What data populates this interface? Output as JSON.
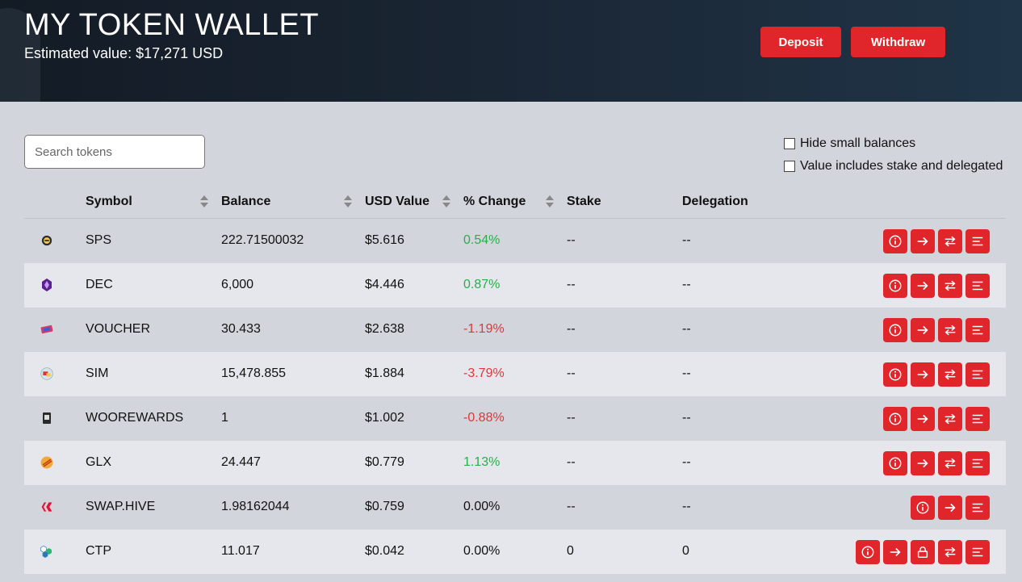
{
  "header": {
    "title": "MY TOKEN WALLET",
    "estimated_value": "Estimated value: $17,271 USD",
    "deposit_label": "Deposit",
    "withdraw_label": "Withdraw"
  },
  "search": {
    "placeholder": "Search tokens",
    "value": ""
  },
  "filters": {
    "hide_small_balances": "Hide small balances",
    "value_includes_stake": "Value includes stake and delegated"
  },
  "columns": {
    "symbol": "Symbol",
    "balance": "Balance",
    "usd_value": "USD Value",
    "pct_change": "% Change",
    "stake": "Stake",
    "delegation": "Delegation"
  },
  "tokens": [
    {
      "symbol": "SPS",
      "balance": "222.71500032",
      "usd": "$5.616",
      "change": "0.54%",
      "trend": "up",
      "stake": "--",
      "delegation": "--",
      "icon": "sps-token-icon",
      "actions": [
        "info",
        "transfer",
        "swap",
        "history"
      ]
    },
    {
      "symbol": "DEC",
      "balance": "6,000",
      "usd": "$4.446",
      "change": "0.87%",
      "trend": "up",
      "stake": "--",
      "delegation": "--",
      "icon": "dec-token-icon",
      "actions": [
        "info",
        "transfer",
        "swap",
        "history"
      ]
    },
    {
      "symbol": "VOUCHER",
      "balance": "30.433",
      "usd": "$2.638",
      "change": "-1.19%",
      "trend": "down",
      "stake": "--",
      "delegation": "--",
      "icon": "voucher-token-icon",
      "actions": [
        "info",
        "transfer",
        "swap",
        "history"
      ]
    },
    {
      "symbol": "SIM",
      "balance": "15,478.855",
      "usd": "$1.884",
      "change": "-3.79%",
      "trend": "down",
      "stake": "--",
      "delegation": "--",
      "icon": "sim-token-icon",
      "actions": [
        "info",
        "transfer",
        "swap",
        "history"
      ]
    },
    {
      "symbol": "WOOREWARDS",
      "balance": "1",
      "usd": "$1.002",
      "change": "-0.88%",
      "trend": "down",
      "stake": "--",
      "delegation": "--",
      "icon": "woorewards-token-icon",
      "actions": [
        "info",
        "transfer",
        "swap",
        "history"
      ]
    },
    {
      "symbol": "GLX",
      "balance": "24.447",
      "usd": "$0.779",
      "change": "1.13%",
      "trend": "up",
      "stake": "--",
      "delegation": "--",
      "icon": "glx-token-icon",
      "actions": [
        "info",
        "transfer",
        "swap",
        "history"
      ]
    },
    {
      "symbol": "SWAP.HIVE",
      "balance": "1.98162044",
      "usd": "$0.759",
      "change": "0.00%",
      "trend": "flat",
      "stake": "--",
      "delegation": "--",
      "icon": "hive-token-icon",
      "actions": [
        "info",
        "transfer",
        "history"
      ]
    },
    {
      "symbol": "CTP",
      "balance": "11.017",
      "usd": "$0.042",
      "change": "0.00%",
      "trend": "flat",
      "stake": "0",
      "delegation": "0",
      "icon": "ctp-token-icon",
      "actions": [
        "info",
        "transfer",
        "stake",
        "swap",
        "history"
      ]
    }
  ],
  "colors": {
    "accent": "#e0262b",
    "positive": "#27b048",
    "negative": "#e0353a",
    "header_bg": "#1a2533",
    "page_bg": "#d3d5dd",
    "row_alt": "#e6e7ec"
  }
}
